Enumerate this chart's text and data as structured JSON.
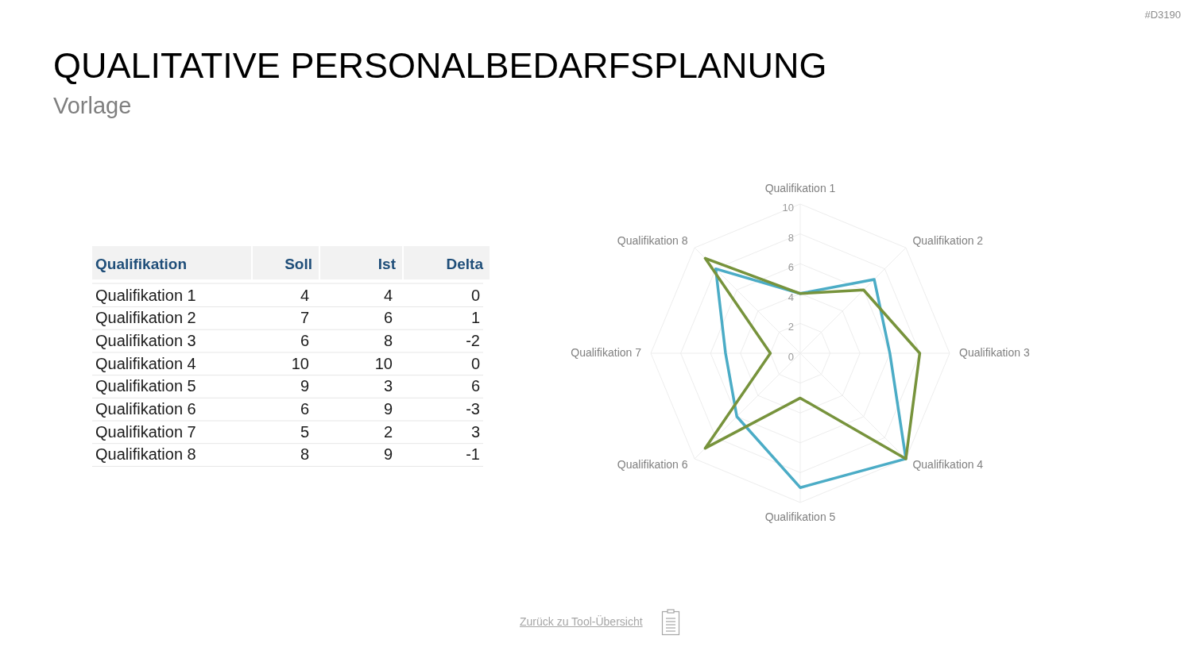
{
  "chart_data": {
    "type": "radar",
    "title": "QUALITATIVE PERSONALBEDARFSPLANUNG",
    "subtitle": "Vorlage",
    "xlabel": "Qualifikation",
    "categories": [
      "Qualifikation 1",
      "Qualifikation 2",
      "Qualifikation 3",
      "Qualifikation 4",
      "Qualifikation 5",
      "Qualifikation 6",
      "Qualifikation 7",
      "Qualifikation 8"
    ],
    "series": [
      {
        "color": "#4bacc6",
        "values": [
          4,
          7,
          6,
          10,
          9,
          6,
          5,
          8
        ]
      },
      {
        "color": "#77933c",
        "values": [
          4,
          6,
          8,
          10,
          3,
          9,
          2,
          9
        ]
      }
    ],
    "ylim": [
      0,
      10
    ],
    "yticks": [
      0,
      2,
      4,
      6,
      8,
      10
    ],
    "grid": true,
    "annotations": [
      "#D3190",
      "Zurück zu Tool-Übersicht",
      "Soll",
      "Ist",
      "Delta",
      "4",
      "4",
      "0",
      "7",
      "6",
      "1",
      "6",
      "8",
      "-2",
      "10",
      "10",
      "0",
      "9",
      "3",
      "6",
      "6",
      "9",
      "-3",
      "5",
      "2",
      "3",
      "8",
      "9",
      "-1"
    ]
  }
}
